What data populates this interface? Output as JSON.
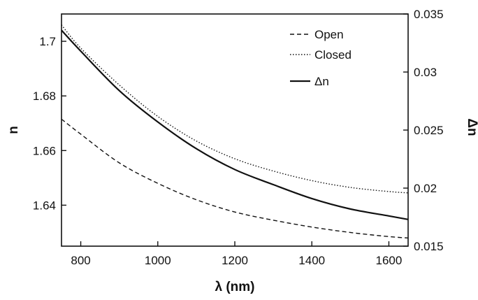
{
  "chart_data": {
    "type": "line",
    "title": "",
    "xlabel": "λ (nm)",
    "ylabel": "n",
    "y2label": "Δn",
    "xlim": [
      750,
      1650
    ],
    "ylim": [
      1.625,
      1.71
    ],
    "y2lim": [
      0.015,
      0.035
    ],
    "x_ticks": [
      800,
      1000,
      1200,
      1400,
      1600
    ],
    "y_ticks": [
      1.64,
      1.66,
      1.68,
      1.7
    ],
    "y2_ticks": [
      0.015,
      0.02,
      0.025,
      0.03,
      0.035
    ],
    "legend_position": "top-right",
    "grid": false,
    "series": [
      {
        "name": "Open",
        "axis": "left",
        "style": "dashed",
        "x": [
          750,
          800,
          900,
          1000,
          1100,
          1200,
          1300,
          1400,
          1500,
          1600,
          1650
        ],
        "y": [
          1.6715,
          1.666,
          1.6555,
          1.648,
          1.642,
          1.6375,
          1.6345,
          1.632,
          1.63,
          1.6285,
          1.628
        ]
      },
      {
        "name": "Closed",
        "axis": "left",
        "style": "dotted",
        "x": [
          750,
          800,
          900,
          1000,
          1100,
          1200,
          1300,
          1400,
          1500,
          1600,
          1650
        ],
        "y": [
          1.706,
          1.6975,
          1.684,
          1.6725,
          1.6635,
          1.657,
          1.6525,
          1.649,
          1.6465,
          1.645,
          1.6445
        ]
      },
      {
        "name": "Δn",
        "axis": "right",
        "style": "solid",
        "x": [
          750,
          800,
          900,
          1000,
          1100,
          1200,
          1300,
          1400,
          1500,
          1600,
          1650
        ],
        "y": [
          0.0336,
          0.0318,
          0.0284,
          0.0257,
          0.0234,
          0.0216,
          0.0203,
          0.0191,
          0.0182,
          0.0176,
          0.0173
        ]
      }
    ]
  }
}
